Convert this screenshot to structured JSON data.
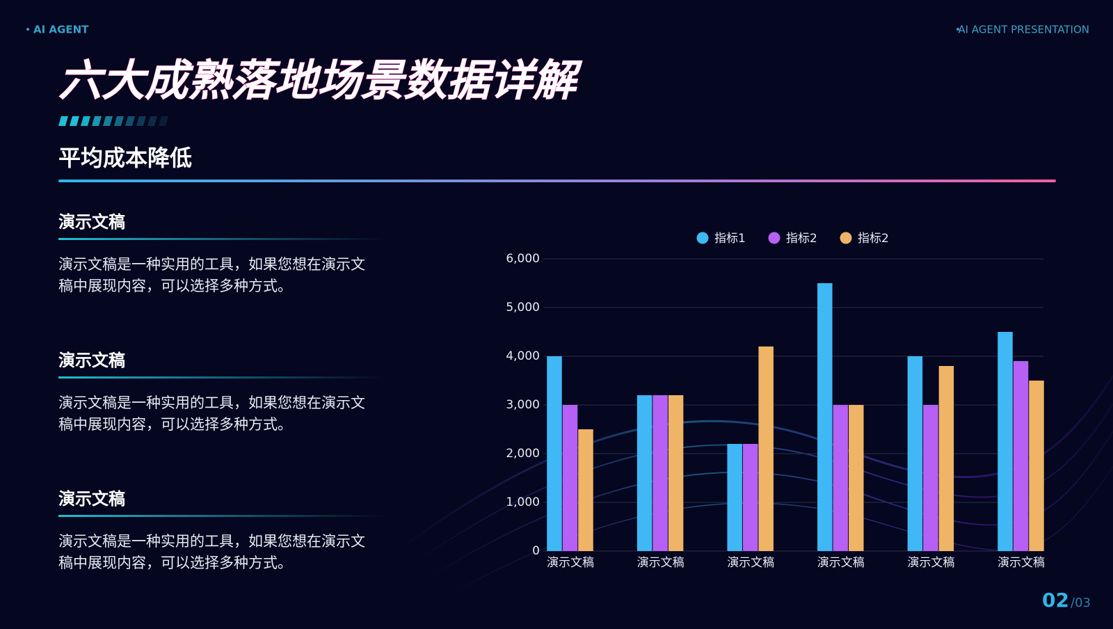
{
  "header": {
    "left": "AI AGENT",
    "right": "AI AGENT PRESENTATION"
  },
  "title": "六大成熟落地场景数据详解",
  "subtitle": "平均成本降低",
  "sections": [
    {
      "heading": "演示文稿",
      "lines": [
        "演示文稿是一种实用的工具，如果您想在演示文",
        "稿中展现内容，可以选择多种方式。"
      ]
    },
    {
      "heading": "演示文稿",
      "lines": [
        "演示文稿是一种实用的工具，如果您想在演示文",
        "稿中展现内容，可以选择多种方式。"
      ]
    },
    {
      "heading": "演示文稿",
      "lines": [
        "演示文稿是一种实用的工具，如果您想在演示文",
        "稿中展现内容，可以选择多种方式。"
      ]
    }
  ],
  "page": {
    "current": "02",
    "total": "/03"
  },
  "chart_data": {
    "type": "bar",
    "categories": [
      "演示文稿",
      "演示文稿",
      "演示文稿",
      "演示文稿",
      "演示文稿",
      "演示文稿"
    ],
    "series": [
      {
        "name": "指标1",
        "color": "#3fb8f5",
        "values": [
          4000,
          3200,
          2200,
          5500,
          4000,
          4500
        ]
      },
      {
        "name": "指标2",
        "color": "#b660f5",
        "values": [
          3000,
          3200,
          2200,
          3000,
          3000,
          3900
        ]
      },
      {
        "name": "指标2",
        "color": "#f0b466",
        "values": [
          2500,
          3200,
          4200,
          3000,
          3800,
          3500
        ]
      }
    ],
    "ylim": [
      0,
      6000
    ],
    "yticks": [
      0,
      {
        "value": 1000,
        "label": "1,000"
      },
      {
        "value": 2000,
        "label": "2,000"
      },
      {
        "value": 3000,
        "label": "3,000"
      },
      {
        "value": 4000,
        "label": "4,000"
      },
      {
        "value": 5000,
        "label": "5,000"
      },
      {
        "value": 6000,
        "label": "6,000"
      }
    ],
    "grid": true,
    "legend": "top"
  }
}
